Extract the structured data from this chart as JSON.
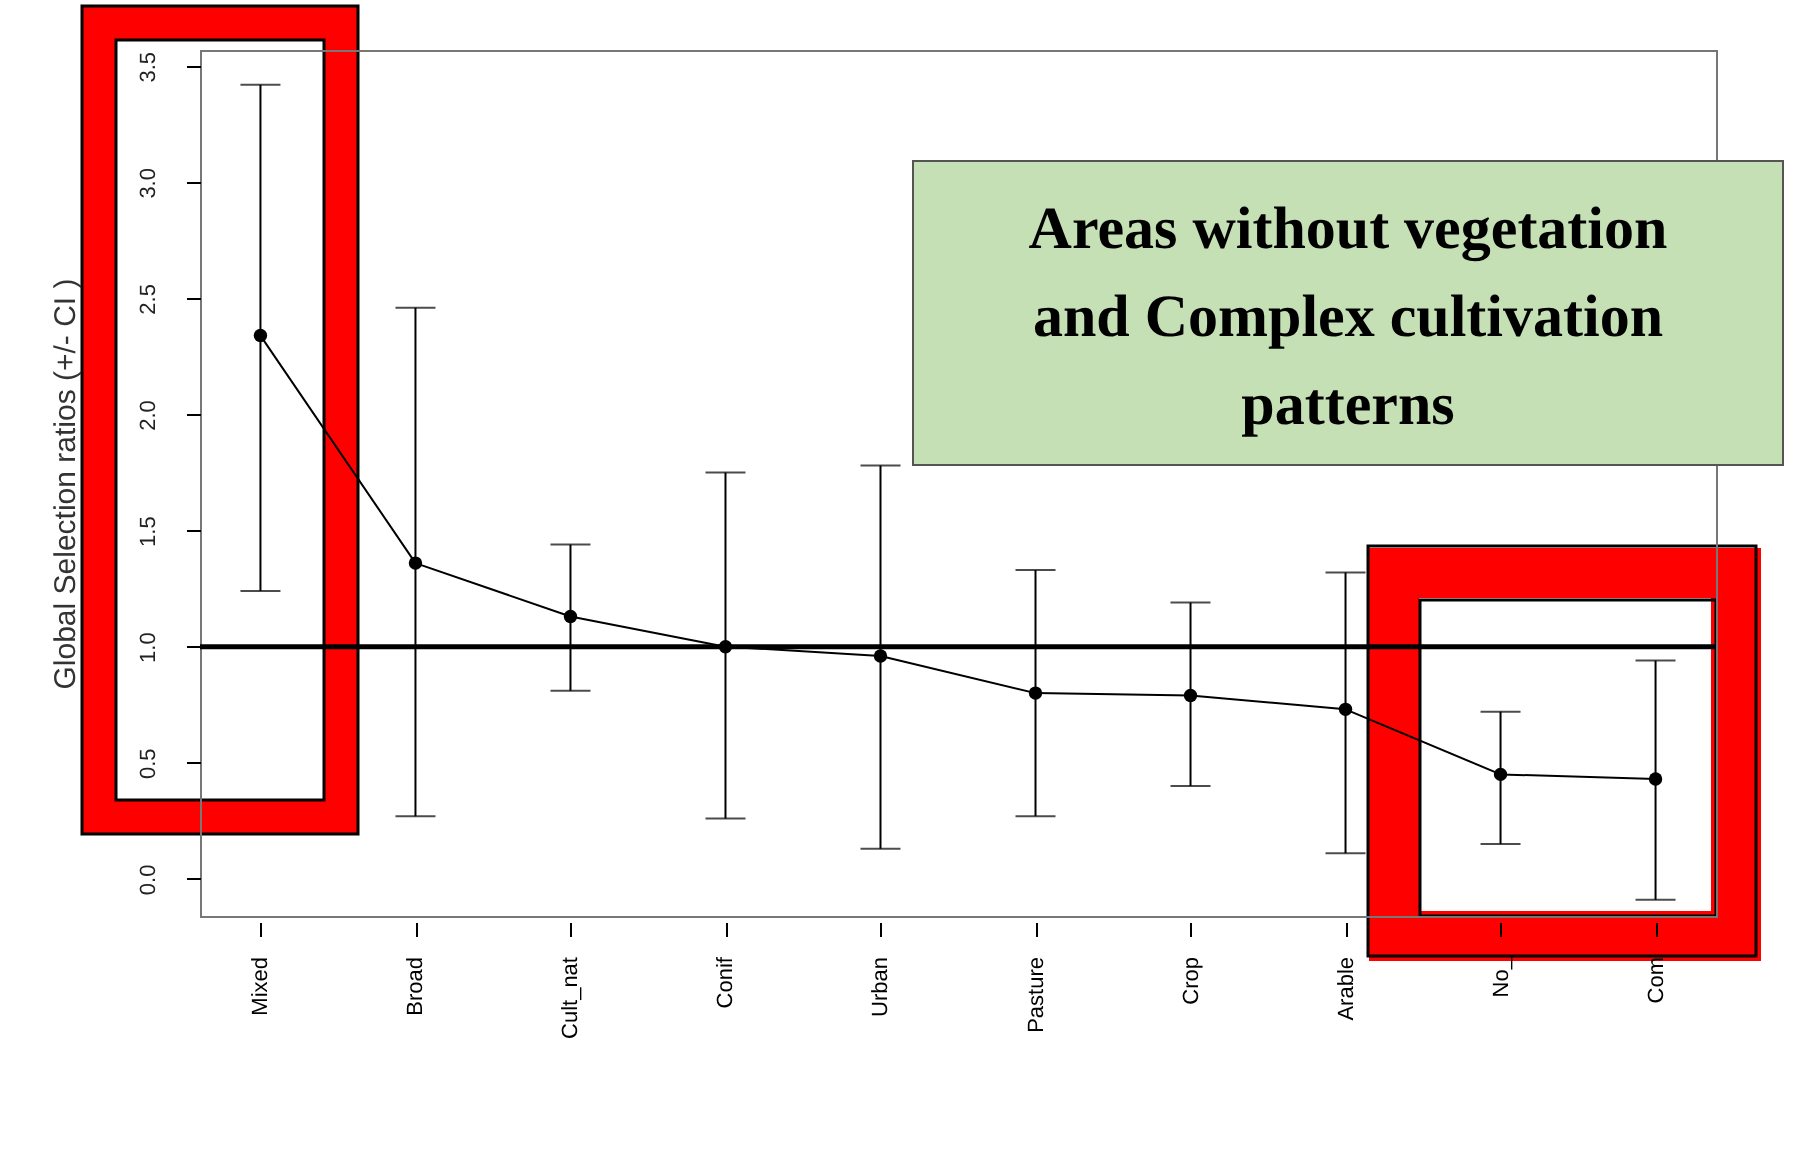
{
  "chart_data": {
    "type": "line",
    "ylabel": "Global Selection ratios (+/- CI )",
    "categories": [
      "Mixed",
      "Broad",
      "Cult_nat",
      "Conif",
      "Urban",
      "Pasture",
      "Crop",
      "Arable",
      "No_",
      "Com"
    ],
    "series": [
      {
        "color": "#000000",
        "values": [
          2.34,
          1.36,
          1.13,
          1.0,
          0.96,
          0.8,
          0.79,
          0.73,
          0.45,
          0.43
        ],
        "errors": [
          [
            1.24,
            3.42
          ],
          [
            0.27,
            2.46
          ],
          [
            0.81,
            1.44
          ],
          [
            0.26,
            1.75
          ],
          [
            0.13,
            1.78
          ],
          [
            0.27,
            1.33
          ],
          [
            0.4,
            1.19
          ],
          [
            0.11,
            1.32
          ],
          [
            0.15,
            0.72
          ],
          [
            -0.09,
            0.94
          ]
        ]
      }
    ],
    "ylim": [
      -0.16,
      3.57
    ],
    "yticks": [
      {
        "value": 0,
        "label": "0.0"
      },
      {
        "value": 0.5,
        "label": "0.5"
      },
      {
        "value": 1,
        "label": "1.0"
      },
      {
        "value": 1.5,
        "label": "1.5"
      },
      {
        "value": 2,
        "label": "2.0"
      },
      {
        "value": 2.5,
        "label": "2.5"
      },
      {
        "value": 3,
        "label": "3.0"
      },
      {
        "value": 3.5,
        "label": "3.5"
      }
    ],
    "ref_lines": [
      {
        "axis": "y",
        "value": 1,
        "color": "#000000"
      }
    ],
    "annotations": [
      "Areas without vegetation and Complex cultivation patterns"
    ],
    "marker": "circle",
    "grid": false
  }
}
